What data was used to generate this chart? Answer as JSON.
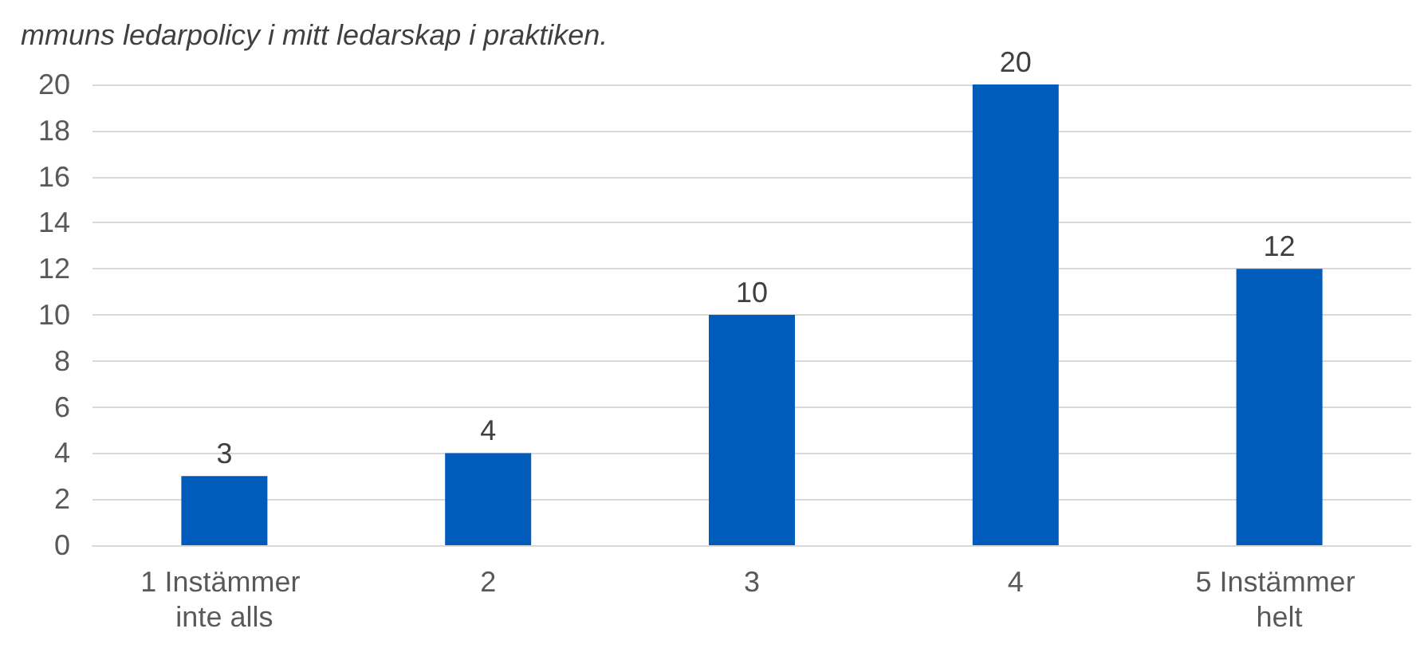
{
  "chart_data": {
    "type": "bar",
    "title": "mmuns ledarpolicy i mitt ledarskap i praktiken.",
    "categories": [
      "1 Instämmer inte alls",
      "2",
      "3",
      "4",
      "5 Instämmer helt"
    ],
    "values": [
      3,
      4,
      10,
      20,
      12
    ],
    "color": "#005bbb",
    "ylim": [
      0,
      20
    ],
    "yticks": [
      0,
      2,
      4,
      6,
      8,
      10,
      12,
      14,
      16,
      18,
      20
    ],
    "grid": "y",
    "data_labels": true
  }
}
